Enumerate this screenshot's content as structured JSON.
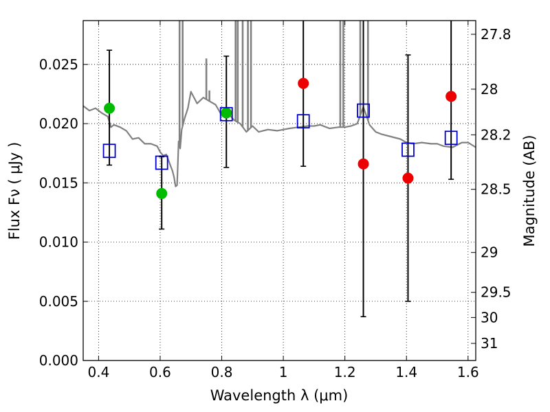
{
  "chart_data": {
    "type": "scatter",
    "xlabel": "Wavelength  λ (μm)",
    "ylabel": "Flux  Fν  ( μJy )",
    "y2label": "Magnitude (AB)",
    "xlim": [
      0.35,
      1.625
    ],
    "ylim": [
      0.0,
      0.0287
    ],
    "grid": true,
    "x_ticks": [
      {
        "value": 0.4,
        "label": "0.4"
      },
      {
        "value": 0.6,
        "label": "0.6"
      },
      {
        "value": 0.8,
        "label": "0.8"
      },
      {
        "value": 1.0,
        "label": "1"
      },
      {
        "value": 1.2,
        "label": "1.2"
      },
      {
        "value": 1.4,
        "label": "1.4"
      },
      {
        "value": 1.6,
        "label": "1.6"
      }
    ],
    "y_ticks": [
      {
        "value": 0.0,
        "label": "0.000"
      },
      {
        "value": 0.005,
        "label": "0.005"
      },
      {
        "value": 0.01,
        "label": "0.010"
      },
      {
        "value": 0.015,
        "label": "0.015"
      },
      {
        "value": 0.02,
        "label": "0.020"
      },
      {
        "value": 0.025,
        "label": "0.025"
      }
    ],
    "y2_ticks": [
      {
        "value": 27.8,
        "label": "27.8"
      },
      {
        "value": 28.0,
        "label": "28"
      },
      {
        "value": 28.2,
        "label": "28.2"
      },
      {
        "value": 28.5,
        "label": "28.5"
      },
      {
        "value": 29.0,
        "label": "29"
      },
      {
        "value": 29.5,
        "label": "29.5"
      },
      {
        "value": 30.0,
        "label": "30"
      },
      {
        "value": 31.0,
        "label": "31"
      }
    ],
    "series": [
      {
        "kind": "line",
        "color": "#808080",
        "x": [
          0.35,
          0.37,
          0.39,
          0.41,
          0.43,
          0.44,
          0.45,
          0.47,
          0.49,
          0.51,
          0.53,
          0.55,
          0.57,
          0.59,
          0.6,
          0.61,
          0.62,
          0.63,
          0.64,
          0.645,
          0.65,
          0.655,
          0.66,
          0.665,
          0.67,
          0.68,
          0.69,
          0.7,
          0.72,
          0.74,
          0.76,
          0.78,
          0.8,
          0.82,
          0.84,
          0.86,
          0.88,
          0.9,
          0.92,
          0.95,
          0.98,
          1.0,
          1.02,
          1.05,
          1.08,
          1.1,
          1.12,
          1.15,
          1.18,
          1.2,
          1.22,
          1.24,
          1.26,
          1.28,
          1.3,
          1.32,
          1.35,
          1.38,
          1.4,
          1.42,
          1.45,
          1.48,
          1.5,
          1.52,
          1.55,
          1.58,
          1.6,
          1.625
        ],
        "y": [
          0.0215,
          0.0211,
          0.0213,
          0.0209,
          0.0206,
          0.0197,
          0.0199,
          0.0197,
          0.0194,
          0.0187,
          0.0188,
          0.0183,
          0.0183,
          0.0181,
          0.0176,
          0.0173,
          0.0174,
          0.0167,
          0.016,
          0.0155,
          0.0147,
          0.0148,
          0.0185,
          0.0179,
          0.0195,
          0.0205,
          0.0213,
          0.0227,
          0.0217,
          0.0222,
          0.0219,
          0.0216,
          0.0207,
          0.0209,
          0.0203,
          0.02,
          0.0193,
          0.0198,
          0.0193,
          0.0195,
          0.0194,
          0.0195,
          0.0196,
          0.0197,
          0.0198,
          0.0198,
          0.0199,
          0.0196,
          0.0197,
          0.0197,
          0.0198,
          0.02,
          0.0214,
          0.0199,
          0.0193,
          0.0191,
          0.0189,
          0.0187,
          0.0184,
          0.0183,
          0.0184,
          0.0183,
          0.0183,
          0.0181,
          0.018,
          0.0184,
          0.0184,
          0.018
        ],
        "spikes": [
          {
            "x": 0.663,
            "y": 0.0287
          },
          {
            "x": 0.673,
            "y": 0.0287
          },
          {
            "x": 0.75,
            "y": 0.0255
          },
          {
            "x": 0.76,
            "y": 0.0228
          },
          {
            "x": 0.845,
            "y": 0.0287
          },
          {
            "x": 0.852,
            "y": 0.0287
          },
          {
            "x": 0.868,
            "y": 0.0287
          },
          {
            "x": 0.885,
            "y": 0.0287
          },
          {
            "x": 0.895,
            "y": 0.0287
          },
          {
            "x": 1.185,
            "y": 0.0287
          },
          {
            "x": 1.195,
            "y": 0.0287
          },
          {
            "x": 1.25,
            "y": 0.0287
          },
          {
            "x": 1.275,
            "y": 0.0287
          }
        ]
      },
      {
        "kind": "errorbar",
        "color": "#000000",
        "points": [
          {
            "x": 0.435,
            "lo": 0.0165,
            "hi": 0.0262
          },
          {
            "x": 0.605,
            "lo": 0.0111,
            "hi": 0.0172
          },
          {
            "x": 0.815,
            "lo": 0.0163,
            "hi": 0.0257
          },
          {
            "x": 1.065,
            "lo": 0.0164,
            "hi": 0.0287
          },
          {
            "x": 1.26,
            "lo": 0.0037,
            "hi": 0.0287
          },
          {
            "x": 1.405,
            "lo": 0.005,
            "hi": 0.0258
          },
          {
            "x": 1.545,
            "lo": 0.0153,
            "hi": 0.0287
          }
        ]
      },
      {
        "kind": "square-open",
        "color": "#0000cc",
        "points": [
          {
            "x": 0.435,
            "y": 0.0177
          },
          {
            "x": 0.605,
            "y": 0.0167
          },
          {
            "x": 0.815,
            "y": 0.0208
          },
          {
            "x": 1.065,
            "y": 0.0202
          },
          {
            "x": 1.26,
            "y": 0.0211
          },
          {
            "x": 1.405,
            "y": 0.0178
          },
          {
            "x": 1.545,
            "y": 0.0188
          }
        ]
      },
      {
        "kind": "circle-filled",
        "color": "#00bb00",
        "points": [
          {
            "x": 0.435,
            "y": 0.0213
          },
          {
            "x": 0.605,
            "y": 0.0141
          },
          {
            "x": 0.815,
            "y": 0.0209
          }
        ]
      },
      {
        "kind": "circle-filled",
        "color": "#ee0000",
        "points": [
          {
            "x": 1.065,
            "y": 0.0234
          },
          {
            "x": 1.26,
            "y": 0.0166
          },
          {
            "x": 1.405,
            "y": 0.0154
          },
          {
            "x": 1.545,
            "y": 0.0223
          }
        ]
      }
    ]
  }
}
